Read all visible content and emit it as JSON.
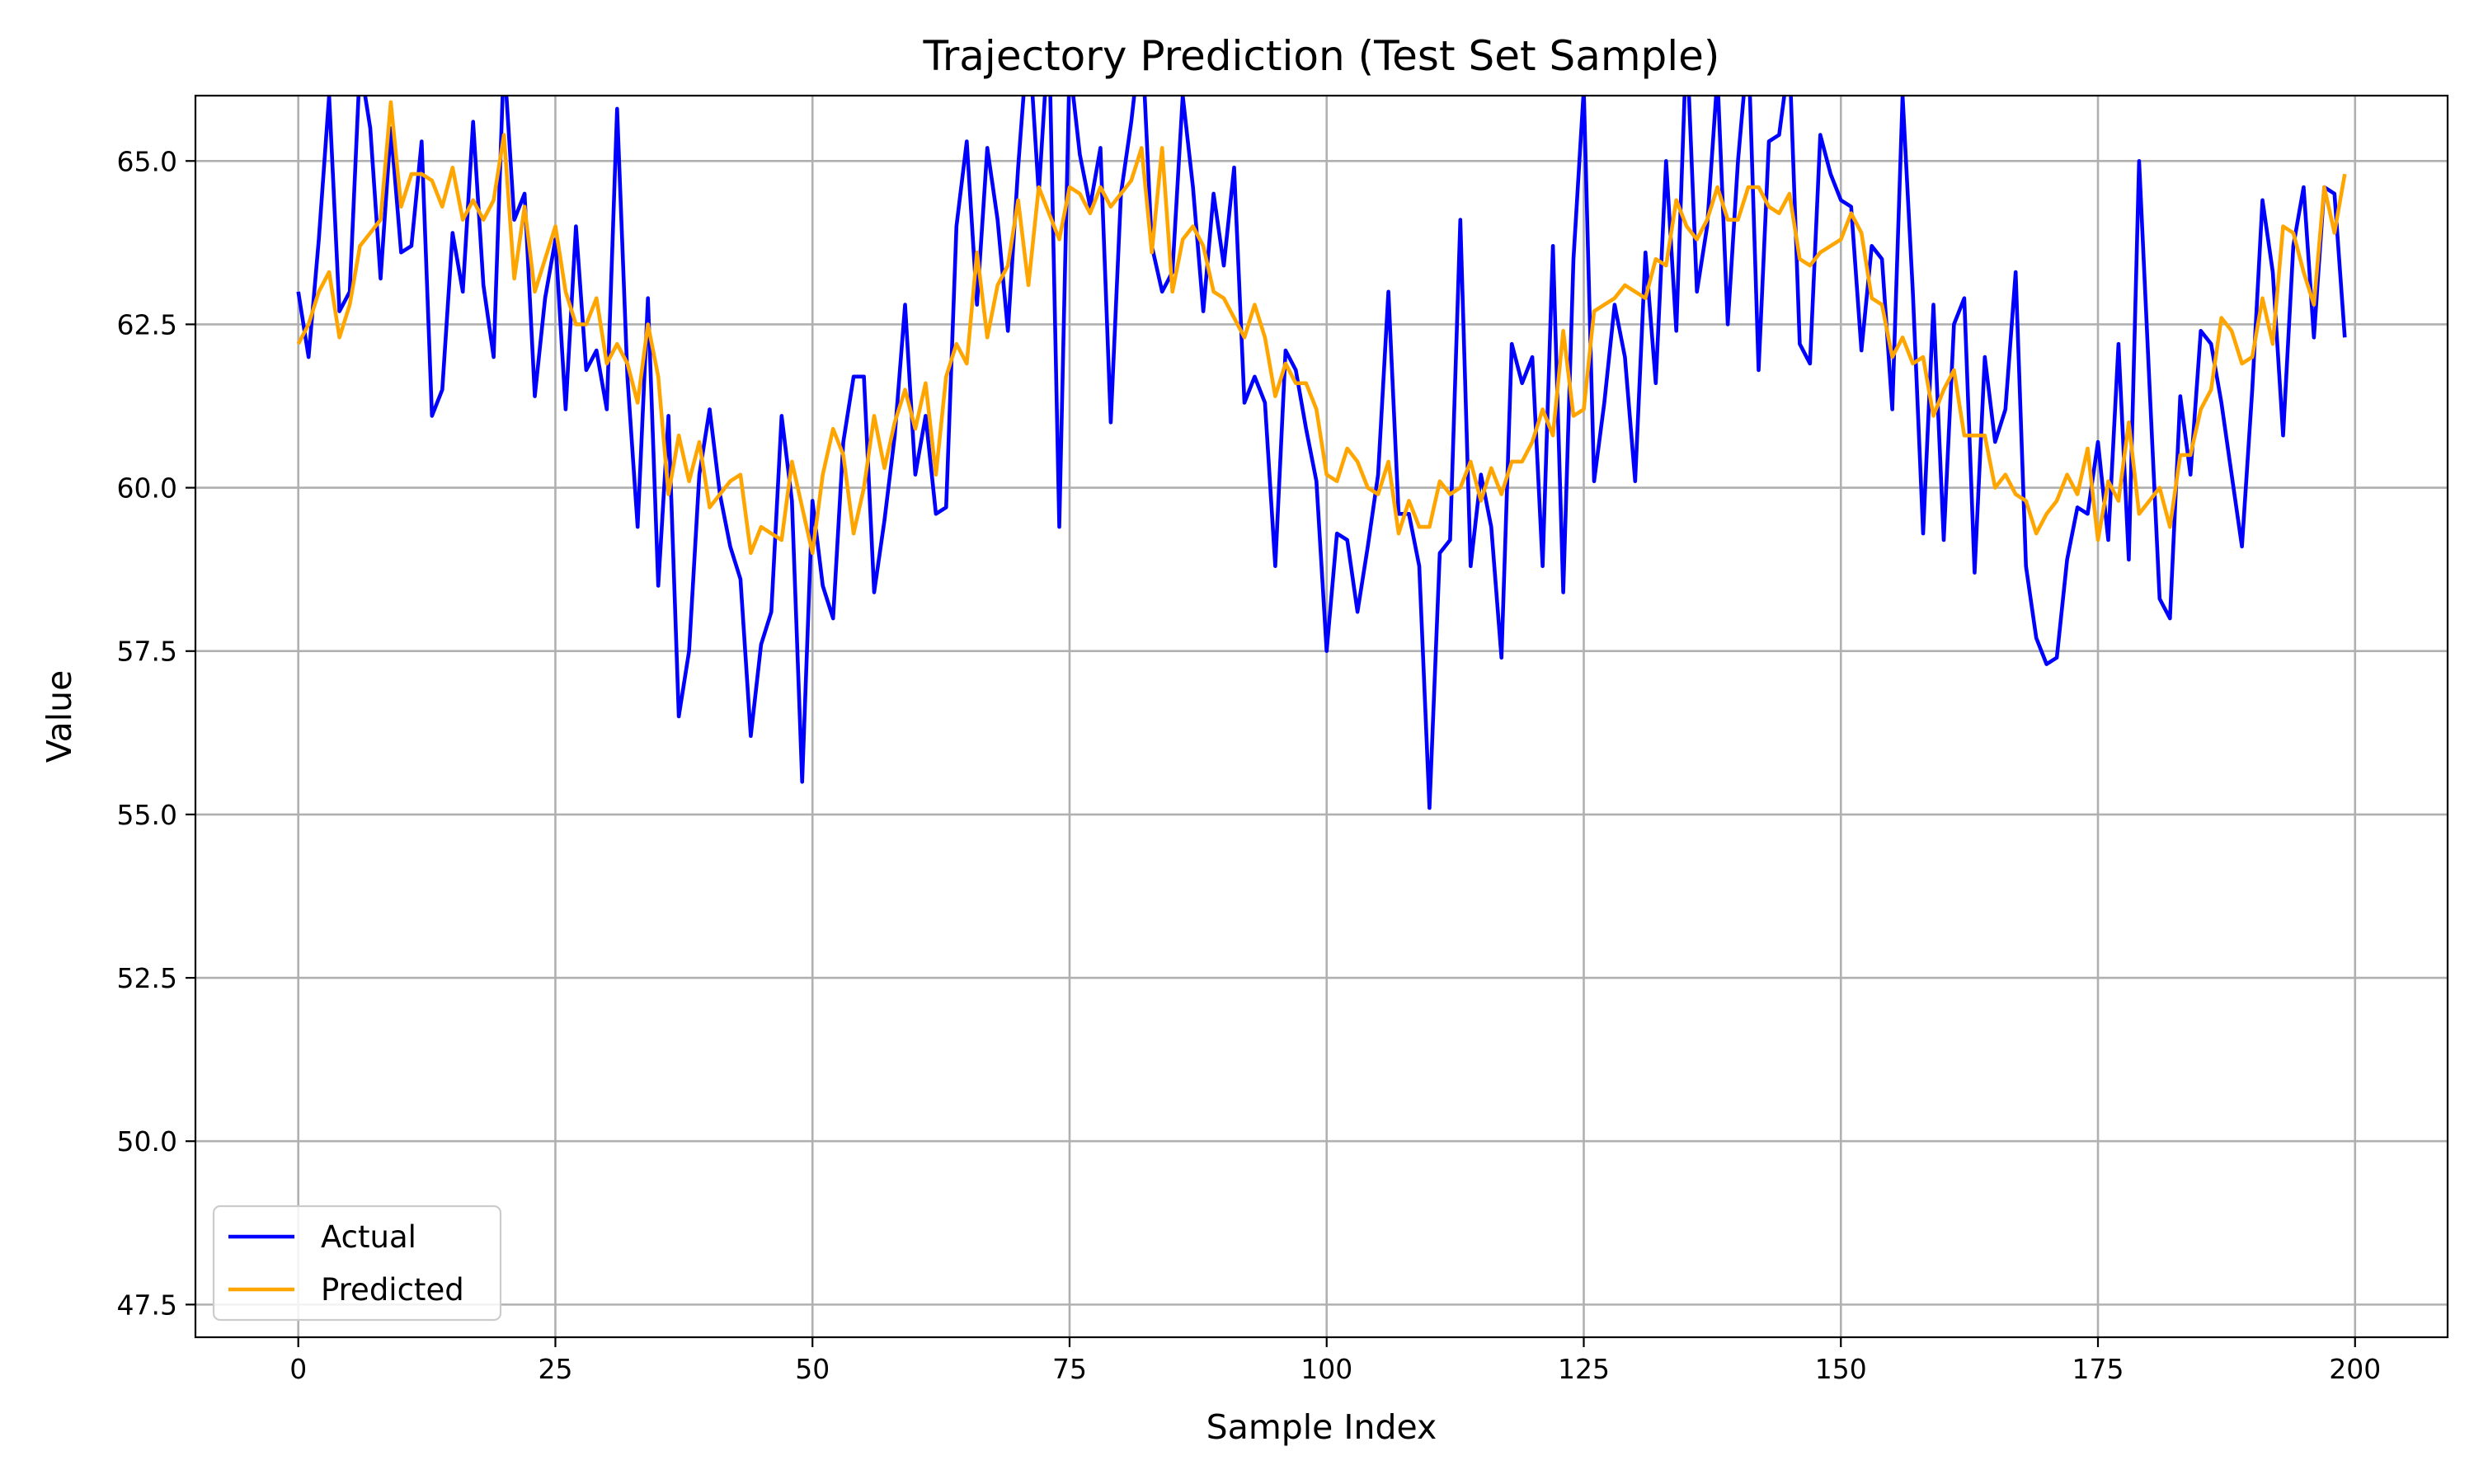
{
  "chart_data": {
    "type": "line",
    "title": "Trajectory Prediction (Test Set Sample)",
    "xlabel": "Sample Index",
    "ylabel": "Value",
    "xlim": [
      -10,
      209
    ],
    "ylim": [
      47,
      66
    ],
    "x_ticks": [
      0,
      25,
      50,
      75,
      100,
      125,
      150,
      175,
      200
    ],
    "x_tick_labels": [
      "0",
      "25",
      "50",
      "75",
      "100",
      "125",
      "150",
      "175",
      "200"
    ],
    "y_ticks": [
      47.5,
      50.0,
      52.5,
      55.0,
      57.5,
      60.0,
      62.5,
      65.0
    ],
    "y_tick_labels": [
      "47.5",
      "50.0",
      "52.5",
      "55.0",
      "57.5",
      "60.0",
      "62.5",
      "65.0"
    ],
    "grid": true,
    "legend_position": "lower-left",
    "series": [
      {
        "name": "Actual",
        "color": "#0000ff",
        "x_start": 0,
        "values": [
          63.0,
          62.0,
          63.8,
          66.0,
          62.7,
          63.0,
          66.5,
          65.5,
          63.2,
          65.5,
          63.6,
          63.7,
          65.3,
          61.1,
          61.5,
          63.9,
          63.0,
          65.6,
          63.1,
          62.0,
          66.6,
          64.1,
          64.5,
          61.4,
          62.9,
          63.8,
          61.2,
          64.0,
          61.8,
          62.1,
          61.2,
          65.8,
          61.7,
          59.4,
          62.9,
          58.5,
          61.1,
          56.5,
          57.5,
          60.2,
          61.2,
          59.9,
          59.1,
          58.6,
          56.2,
          57.6,
          58.1,
          61.1,
          59.8,
          55.5,
          59.8,
          58.5,
          58.0,
          60.7,
          61.7,
          61.7,
          58.4,
          59.5,
          60.8,
          62.8,
          60.2,
          61.1,
          59.6,
          59.7,
          64.0,
          65.3,
          62.8,
          65.2,
          64.1,
          62.4,
          64.9,
          67.0,
          64.5,
          67.0,
          59.4,
          66.5,
          65.1,
          64.3,
          65.2,
          61.0,
          64.5,
          65.6,
          67.0,
          63.7,
          63.0,
          63.3,
          66.0,
          64.6,
          62.7,
          64.5,
          63.4,
          64.9,
          61.3,
          61.7,
          61.3,
          58.8,
          62.1,
          61.8,
          60.9,
          60.1,
          57.5,
          59.3,
          59.2,
          58.1,
          59.1,
          60.2,
          63.0,
          59.6,
          59.6,
          58.8,
          55.1,
          59.0,
          59.2,
          64.1,
          58.8,
          60.2,
          59.4,
          57.4,
          62.2,
          61.6,
          62.0,
          58.8,
          63.7,
          58.4,
          63.5,
          66.1,
          60.1,
          61.3,
          62.8,
          62.0,
          60.1,
          63.6,
          61.6,
          65.0,
          62.4,
          66.9,
          63.0,
          64.0,
          66.3,
          62.5,
          65.0,
          66.8,
          61.8,
          65.3,
          65.4,
          66.6,
          62.2,
          61.9,
          65.4,
          64.8,
          64.4,
          64.3,
          62.1,
          63.7,
          63.5,
          61.2,
          66.0,
          63.0,
          59.3,
          62.8,
          59.2,
          62.5,
          62.9,
          58.7,
          62.0,
          60.7,
          61.2,
          63.3,
          58.8,
          57.7,
          57.3,
          57.4,
          58.9,
          59.7,
          59.6,
          60.7,
          59.2,
          62.2,
          58.9,
          65.0,
          61.6,
          58.3,
          58.0,
          61.4,
          60.2,
          62.4,
          62.2,
          61.3,
          60.2,
          59.1,
          61.5,
          64.4,
          63.3,
          60.8,
          63.7,
          64.6,
          62.3,
          64.6,
          64.5,
          62.3
        ]
      },
      {
        "name": "Predicted",
        "color": "#ffa500",
        "x_start": 0,
        "values": [
          62.2,
          62.5,
          63.0,
          63.3,
          62.3,
          62.8,
          63.7,
          63.9,
          64.1,
          65.9,
          64.3,
          64.8,
          64.8,
          64.7,
          64.3,
          64.9,
          64.1,
          64.4,
          64.1,
          64.4,
          65.4,
          63.2,
          64.3,
          63.0,
          63.5,
          64.0,
          63.0,
          62.5,
          62.5,
          62.9,
          61.9,
          62.2,
          61.9,
          61.3,
          62.5,
          61.7,
          59.9,
          60.8,
          60.1,
          60.7,
          59.7,
          59.9,
          60.1,
          60.2,
          59.0,
          59.4,
          59.3,
          59.2,
          60.4,
          59.7,
          59.0,
          60.2,
          60.9,
          60.5,
          59.3,
          60.0,
          61.1,
          60.3,
          61.0,
          61.5,
          60.9,
          61.6,
          60.2,
          61.7,
          62.2,
          61.9,
          63.6,
          62.3,
          63.1,
          63.4,
          64.4,
          63.1,
          64.6,
          64.2,
          63.8,
          64.6,
          64.5,
          64.2,
          64.6,
          64.3,
          64.5,
          64.7,
          65.2,
          63.6,
          65.2,
          63.0,
          63.8,
          64.0,
          63.7,
          63.0,
          62.9,
          62.6,
          62.3,
          62.8,
          62.3,
          61.4,
          61.9,
          61.6,
          61.6,
          61.2,
          60.2,
          60.1,
          60.6,
          60.4,
          60.0,
          59.9,
          60.4,
          59.3,
          59.8,
          59.4,
          59.4,
          60.1,
          59.9,
          60.0,
          60.4,
          59.8,
          60.3,
          59.9,
          60.4,
          60.4,
          60.7,
          61.2,
          60.8,
          62.4,
          61.1,
          61.2,
          62.7,
          62.8,
          62.9,
          63.1,
          63.0,
          62.9,
          63.5,
          63.4,
          64.4,
          64.0,
          63.8,
          64.1,
          64.6,
          64.1,
          64.1,
          64.6,
          64.6,
          64.3,
          64.2,
          64.5,
          63.5,
          63.4,
          63.6,
          63.7,
          63.8,
          64.2,
          63.9,
          62.9,
          62.8,
          62.0,
          62.3,
          61.9,
          62.0,
          61.1,
          61.5,
          61.8,
          60.8,
          60.8,
          60.8,
          60.0,
          60.2,
          59.9,
          59.8,
          59.3,
          59.6,
          59.8,
          60.2,
          59.9,
          60.6,
          59.2,
          60.1,
          59.8,
          61.0,
          59.6,
          59.8,
          60.0,
          59.4,
          60.5,
          60.5,
          61.2,
          61.5,
          62.6,
          62.4,
          61.9,
          62.0,
          62.9,
          62.2,
          64.0,
          63.9,
          63.3,
          62.8,
          64.6,
          63.9,
          64.8
        ]
      }
    ]
  }
}
